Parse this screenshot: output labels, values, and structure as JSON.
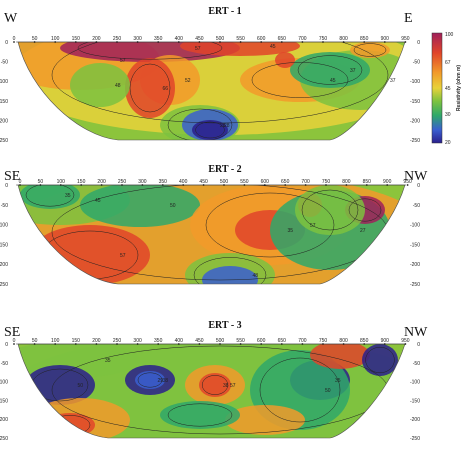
{
  "chart_data": {
    "type": "heatmap",
    "colorbar": {
      "label": "Resistivity (ohm m)",
      "ticks": [
        100,
        67,
        45,
        30,
        20
      ],
      "colors": [
        "#2a1f8c",
        "#3a5fd0",
        "#2fa86a",
        "#7dc23f",
        "#e8d23a",
        "#f29a2a",
        "#e0442a",
        "#a0205a"
      ]
    },
    "panels": [
      {
        "title": "ERT - 1",
        "left_label": "W",
        "right_label": "E",
        "x_ticks": [
          "0",
          "50",
          "100",
          "150",
          "200",
          "250",
          "300",
          "350",
          "400",
          "450",
          "500",
          "550",
          "600",
          "650",
          "700",
          "750",
          "800",
          "850",
          "900",
          "950"
        ],
        "y_ticks": [
          "0",
          "-50",
          "-100",
          "-150",
          "-200",
          "-250"
        ],
        "contour_labels": [
          "57",
          "57",
          "45",
          "45",
          "37",
          "37",
          "52",
          "66",
          "48",
          "28",
          "28"
        ]
      },
      {
        "title": "ERT - 2",
        "left_label": "SE",
        "right_label": "NW",
        "x_ticks": [
          "0",
          "50",
          "100",
          "150",
          "200",
          "250",
          "300",
          "350",
          "400",
          "450",
          "500",
          "550",
          "600",
          "650",
          "700",
          "750",
          "800",
          "850",
          "900",
          "950"
        ],
        "y_ticks": [
          "0",
          "-50",
          "-100",
          "-150",
          "-200",
          "-250"
        ],
        "contour_labels": [
          "45",
          "35",
          "50",
          "57",
          "35",
          "57",
          "27",
          "48"
        ]
      },
      {
        "title": "ERT - 3",
        "left_label": "SE",
        "right_label": "NW",
        "x_ticks": [
          "0",
          "50",
          "100",
          "150",
          "200",
          "250",
          "300",
          "350",
          "400",
          "450",
          "500",
          "550",
          "600",
          "650",
          "700",
          "750",
          "800",
          "850",
          "900",
          "950"
        ],
        "y_ticks": [
          "0",
          "-50",
          "-100",
          "-150",
          "-200",
          "-250"
        ],
        "contour_labels": [
          "35",
          "50",
          "38",
          "29",
          "57",
          "38",
          "35",
          "50"
        ]
      }
    ]
  }
}
